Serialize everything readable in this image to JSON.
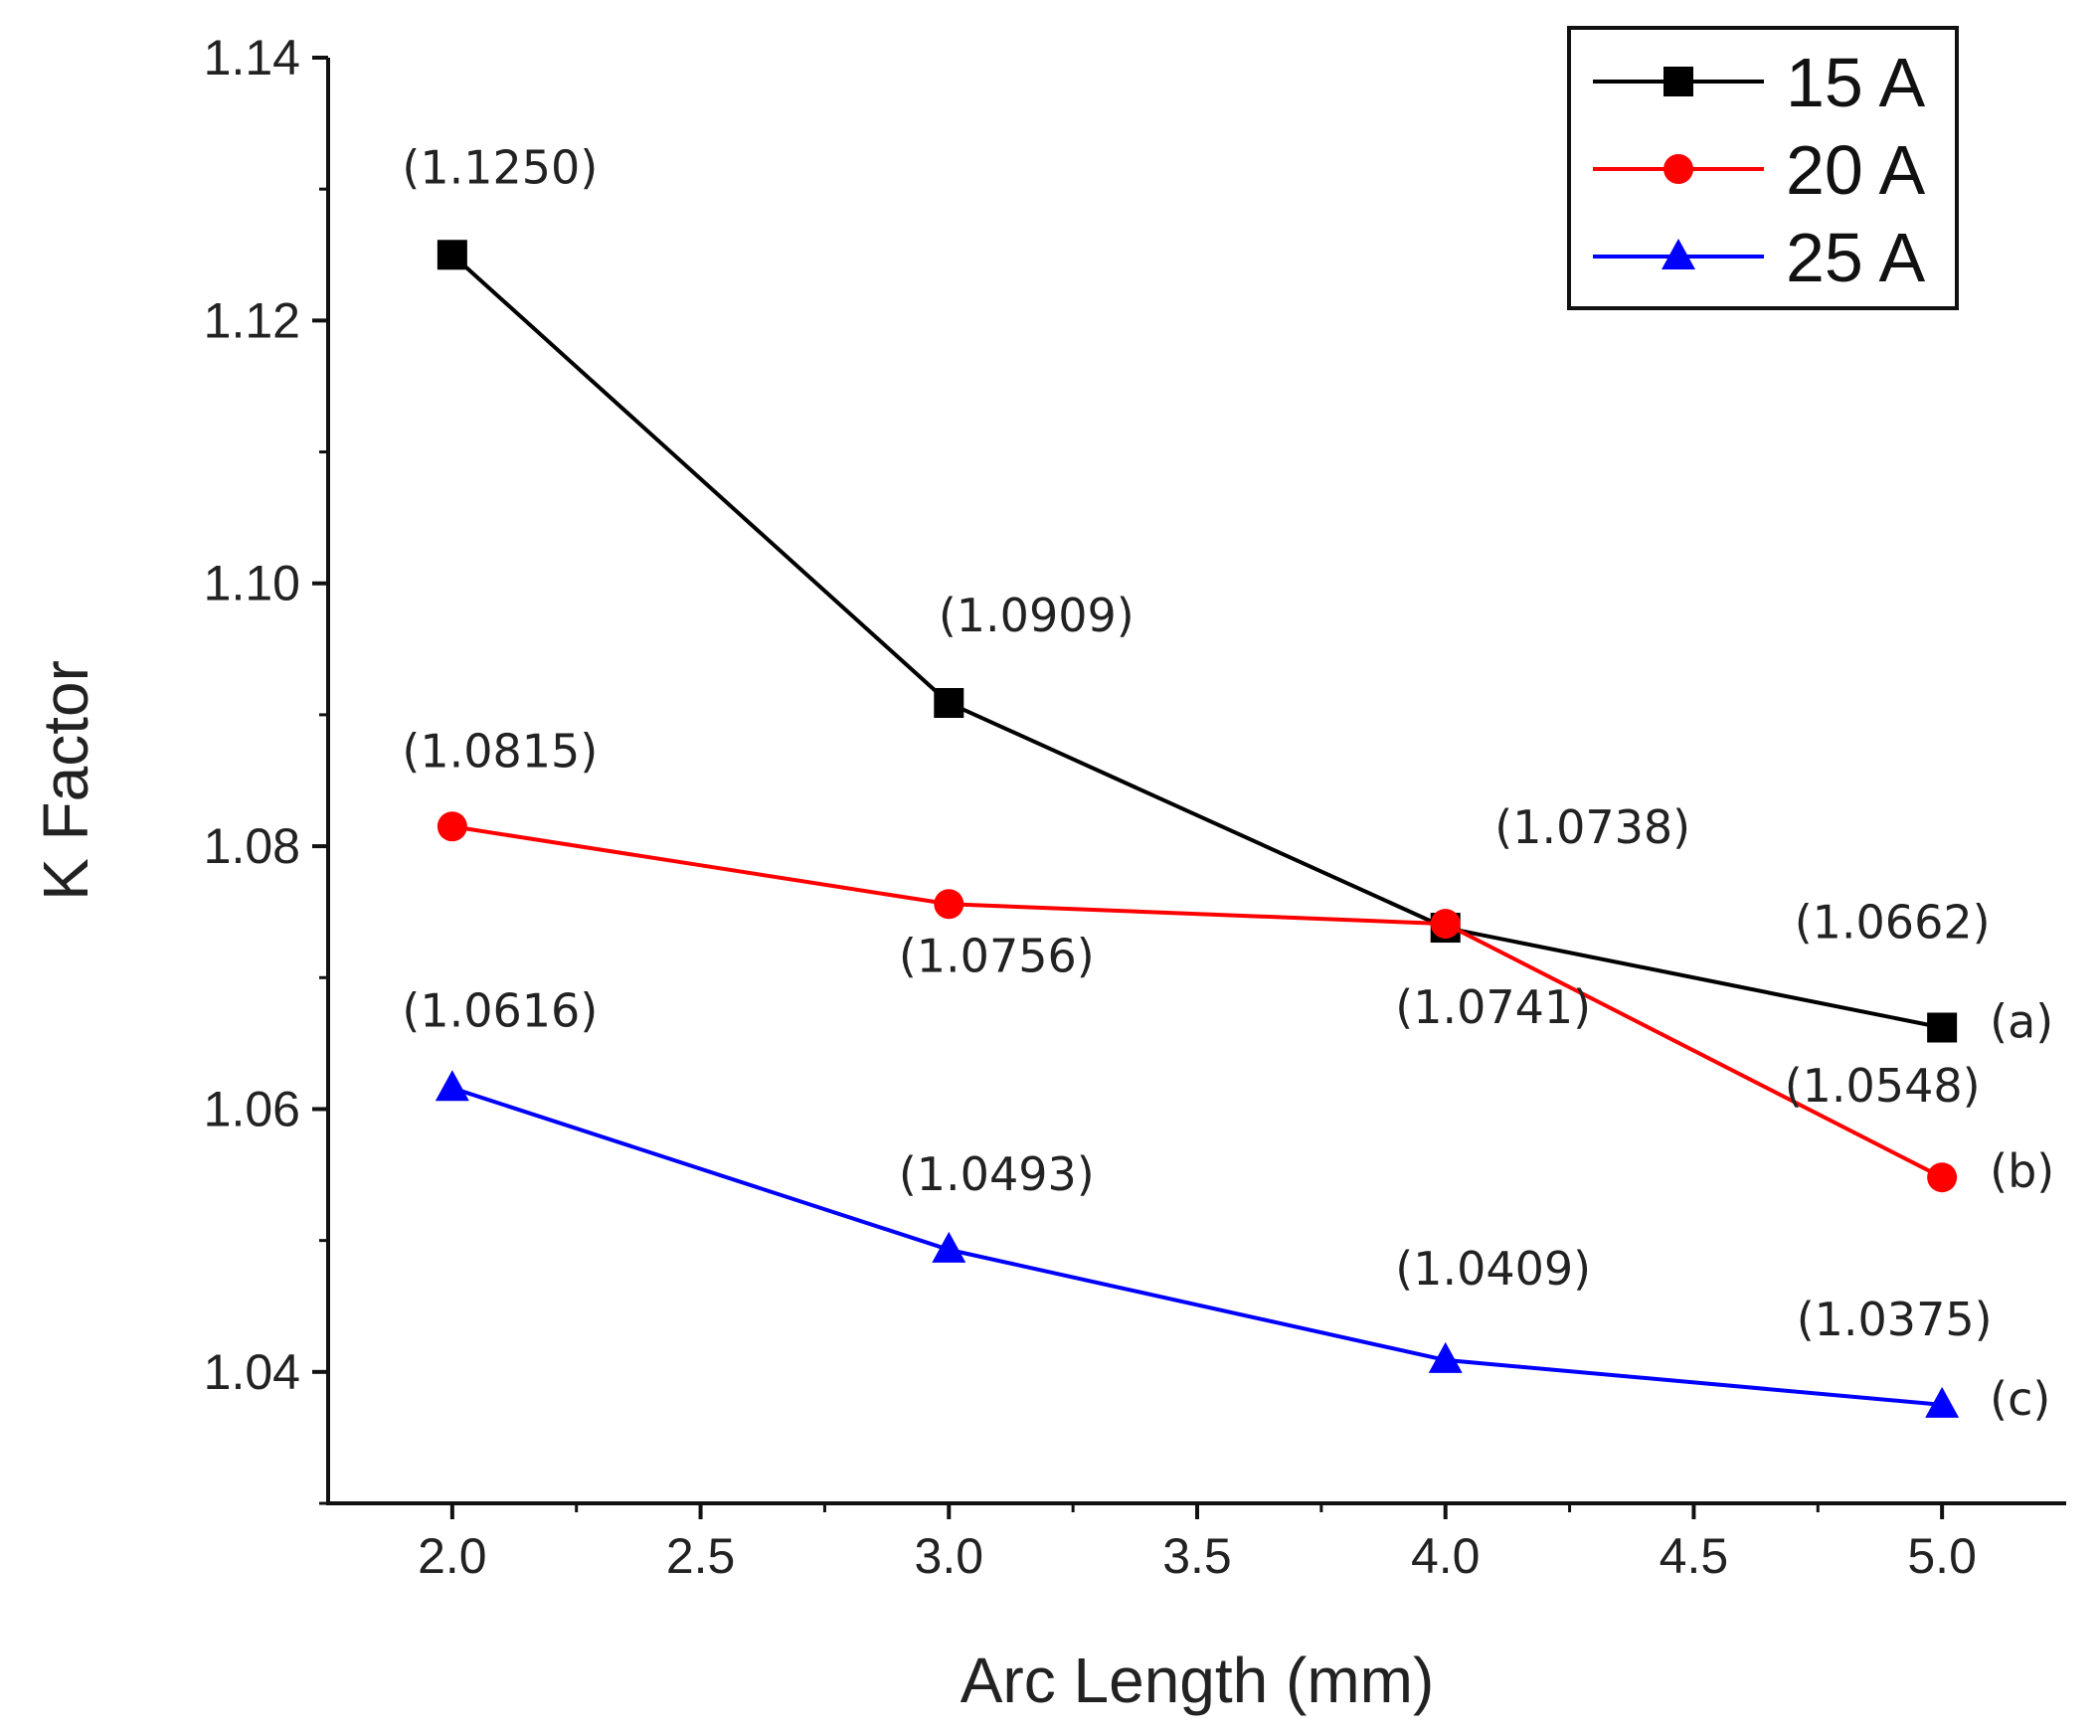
{
  "chart_data": {
    "type": "line",
    "xlabel": "Arc Length (mm)",
    "ylabel": "K Factor",
    "xlim": [
      1.75,
      5.25
    ],
    "ylim": [
      1.03,
      1.14
    ],
    "xticks": [
      "2.0",
      "2.5",
      "3.0",
      "3.5",
      "4.0",
      "4.5",
      "5.0"
    ],
    "yticks": [
      "1.04",
      "1.06",
      "1.08",
      "1.10",
      "1.12",
      "1.14"
    ],
    "x": [
      2.0,
      3.0,
      4.0,
      5.0
    ],
    "series": [
      {
        "name": "15 A",
        "color": "#000000",
        "marker": "square",
        "values": [
          1.125,
          1.0909,
          1.0738,
          1.0662
        ],
        "point_labels": [
          "(1.1250)",
          "(1.0909)",
          "(1.0738)",
          "(1.0662)"
        ],
        "curve_label": "(a)"
      },
      {
        "name": "20 A",
        "color": "#ff0000",
        "marker": "circle",
        "values": [
          1.0815,
          1.0756,
          1.0741,
          1.0548
        ],
        "point_labels": [
          "(1.0815)",
          "(1.0756)",
          "(1.0741)",
          "(1.0548)"
        ],
        "curve_label": "(b)"
      },
      {
        "name": "25 A",
        "color": "#0000ff",
        "marker": "triangle",
        "values": [
          1.0616,
          1.0493,
          1.0409,
          1.0375
        ],
        "point_labels": [
          "(1.0616)",
          "(1.0493)",
          "(1.0409)",
          "(1.0375)"
        ],
        "curve_label": "(c)"
      }
    ],
    "legend_position": "top-right",
    "grid": false
  }
}
